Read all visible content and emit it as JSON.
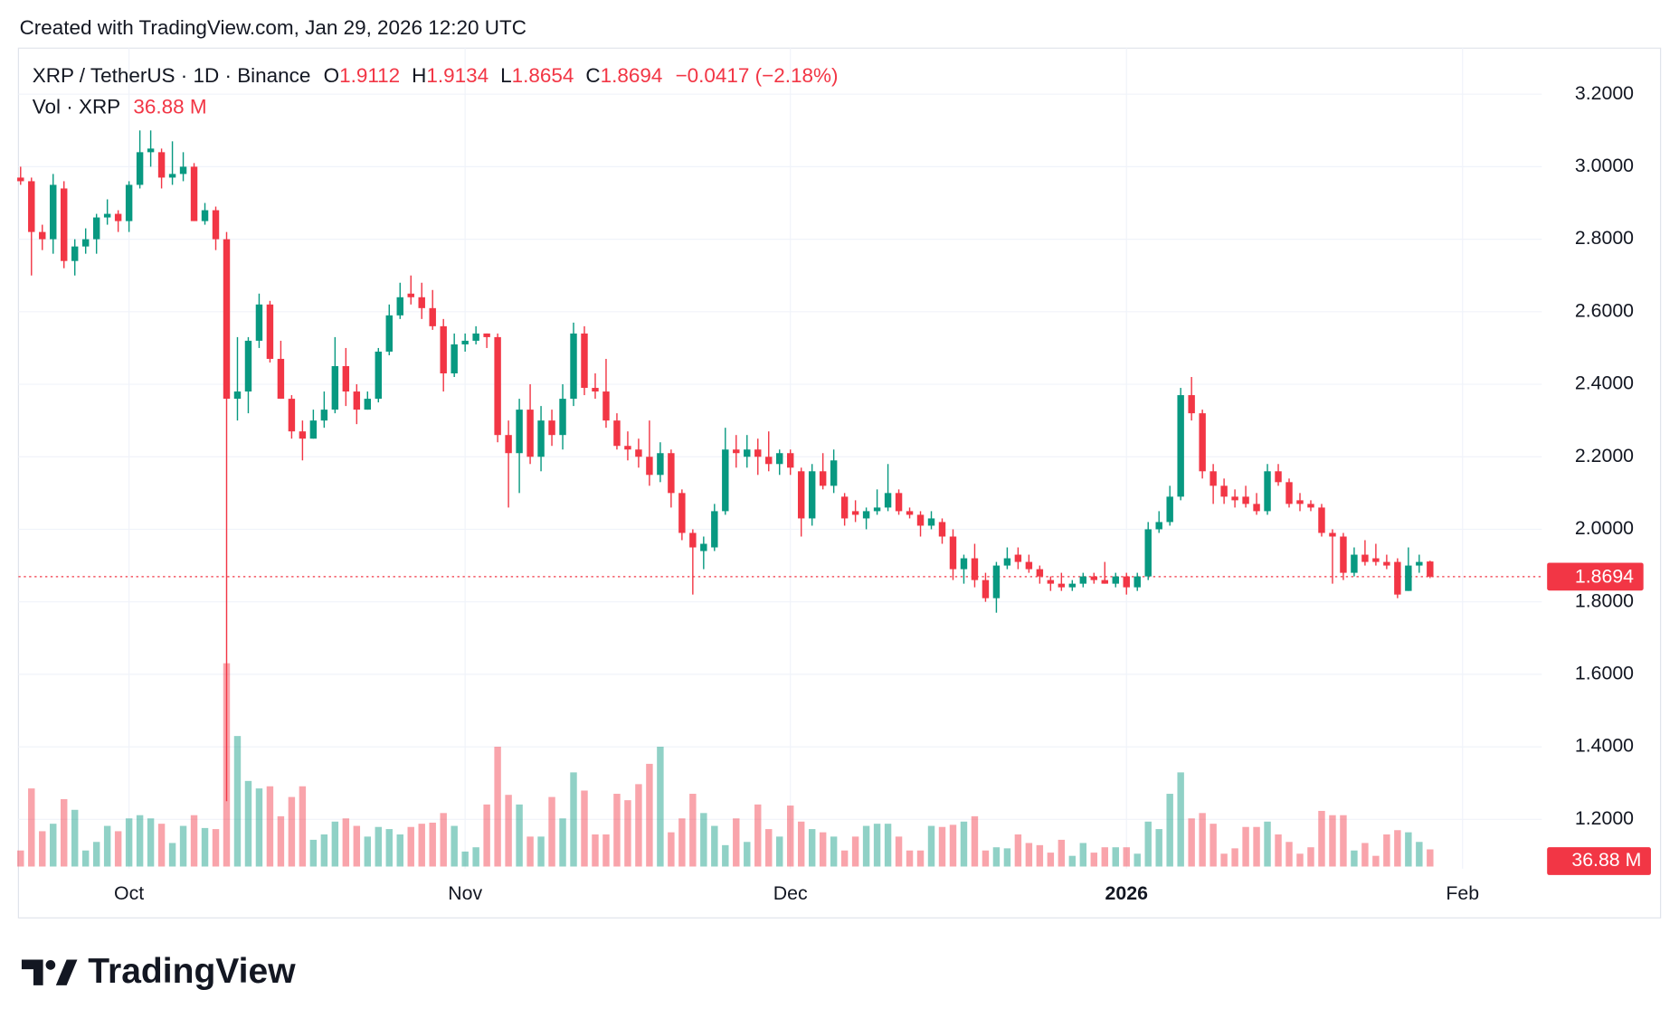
{
  "caption": "Created with TradingView.com, Jan 29, 2026 12:20 UTC",
  "watermark": "TradingView",
  "chart_data": {
    "type": "candlestick",
    "symbol_label": "XRP / TetherUS · 1D · Binance",
    "ohlc_keys": [
      "O",
      "H",
      "L",
      "C"
    ],
    "change_label": "−0.0417 (−2.18%)",
    "volume_title": "Vol · XRP",
    "last_volume_label": "36.88 M",
    "up_color": "#089981",
    "down_color": "#f23645",
    "grid": true,
    "ylim": [
      1.064,
      3.327
    ],
    "yticks": [
      {
        "value": 1.2,
        "label": "1.2000"
      },
      {
        "value": 1.4,
        "label": "1.4000"
      },
      {
        "value": 1.6,
        "label": "1.6000"
      },
      {
        "value": 1.8,
        "label": "1.8000"
      },
      {
        "value": 2.0,
        "label": "2.0000"
      },
      {
        "value": 2.2,
        "label": "2.2000"
      },
      {
        "value": 2.4,
        "label": "2.4000"
      },
      {
        "value": 2.6,
        "label": "2.6000"
      },
      {
        "value": 2.8,
        "label": "2.8000"
      },
      {
        "value": 3.0,
        "label": "3.0000"
      },
      {
        "value": 3.2,
        "label": "3.2000"
      }
    ],
    "xlim": [
      -0.2,
      140.3
    ],
    "xticks": [
      {
        "value": 10,
        "label": "Oct"
      },
      {
        "value": 41,
        "label": "Nov"
      },
      {
        "value": 71,
        "label": "Dec"
      },
      {
        "value": 102,
        "label": "2026"
      },
      {
        "value": 133,
        "label": "Feb"
      }
    ],
    "open": [
      2.97,
      2.96,
      2.82,
      2.8,
      2.94,
      2.74,
      2.78,
      2.8,
      2.86,
      2.87,
      2.85,
      2.95,
      3.04,
      3.04,
      2.97,
      2.98,
      3.0,
      2.85,
      2.88,
      2.8,
      2.36,
      2.38,
      2.52,
      2.62,
      2.47,
      2.36,
      2.27,
      2.25,
      2.3,
      2.33,
      2.45,
      2.38,
      2.33,
      2.36,
      2.49,
      2.59,
      2.65,
      2.64,
      2.61,
      2.56,
      2.43,
      2.51,
      2.52,
      2.54,
      2.53,
      2.26,
      2.21,
      2.33,
      2.2,
      2.3,
      2.26,
      2.36,
      2.54,
      2.39,
      2.38,
      2.3,
      2.23,
      2.22,
      2.2,
      2.15,
      2.21,
      2.1,
      1.99,
      1.94,
      1.95,
      2.05,
      2.22,
      2.2,
      2.22,
      2.2,
      2.18,
      2.21,
      2.16,
      2.03,
      2.16,
      2.12,
      2.09,
      2.05,
      2.03,
      2.05,
      2.06,
      2.1,
      2.05,
      2.04,
      2.01,
      2.02,
      1.98,
      1.89,
      1.92,
      1.86,
      1.81,
      1.9,
      1.93,
      1.91,
      1.89,
      1.86,
      1.85,
      1.84,
      1.85,
      1.87,
      1.86,
      1.85,
      1.87,
      1.84,
      1.87,
      2.0,
      2.02,
      2.09,
      2.37,
      2.32,
      2.16,
      2.12,
      2.09,
      2.09,
      2.07,
      2.05,
      2.16,
      2.13,
      2.08,
      2.07,
      2.06,
      1.99,
      1.98,
      1.88,
      1.93,
      1.92,
      1.91,
      1.91,
      1.83,
      1.9,
      1.9112
    ],
    "high": [
      3.0,
      2.97,
      2.84,
      2.98,
      2.96,
      2.8,
      2.83,
      2.87,
      2.91,
      2.88,
      2.96,
      3.1,
      3.1,
      3.05,
      3.07,
      3.04,
      3.01,
      2.9,
      2.89,
      2.82,
      2.53,
      2.53,
      2.65,
      2.63,
      2.52,
      2.37,
      2.3,
      2.33,
      2.38,
      2.53,
      2.5,
      2.4,
      2.38,
      2.5,
      2.62,
      2.68,
      2.7,
      2.68,
      2.66,
      2.58,
      2.54,
      2.54,
      2.56,
      2.54,
      2.54,
      2.3,
      2.36,
      2.4,
      2.34,
      2.33,
      2.4,
      2.57,
      2.56,
      2.43,
      2.47,
      2.32,
      2.27,
      2.25,
      2.3,
      2.24,
      2.22,
      2.11,
      2.0,
      1.98,
      2.07,
      2.28,
      2.26,
      2.26,
      2.25,
      2.27,
      2.22,
      2.22,
      2.17,
      2.18,
      2.21,
      2.22,
      2.1,
      2.08,
      2.06,
      2.11,
      2.18,
      2.11,
      2.06,
      2.05,
      2.05,
      2.03,
      2.0,
      1.93,
      1.96,
      1.88,
      1.91,
      1.95,
      1.95,
      1.93,
      1.9,
      1.87,
      1.88,
      1.86,
      1.88,
      1.88,
      1.91,
      1.88,
      1.88,
      1.88,
      2.02,
      2.05,
      2.12,
      2.39,
      2.42,
      2.33,
      2.18,
      2.14,
      2.11,
      2.12,
      2.1,
      2.18,
      2.18,
      2.14,
      2.1,
      2.08,
      2.07,
      2.0,
      1.99,
      1.95,
      1.97,
      1.96,
      1.93,
      1.92,
      1.95,
      1.93,
      1.9134
    ],
    "low": [
      2.95,
      2.7,
      2.77,
      2.76,
      2.72,
      2.7,
      2.76,
      2.76,
      2.84,
      2.82,
      2.82,
      2.94,
      3.0,
      2.94,
      2.95,
      2.96,
      2.85,
      2.84,
      2.77,
      1.25,
      2.3,
      2.32,
      2.5,
      2.46,
      2.36,
      2.25,
      2.19,
      2.25,
      2.28,
      2.32,
      2.34,
      2.29,
      2.33,
      2.35,
      2.48,
      2.58,
      2.62,
      2.58,
      2.55,
      2.38,
      2.42,
      2.49,
      2.51,
      2.5,
      2.24,
      2.06,
      2.1,
      2.18,
      2.16,
      2.23,
      2.22,
      2.34,
      2.37,
      2.36,
      2.28,
      2.22,
      2.19,
      2.17,
      2.12,
      2.13,
      2.06,
      1.97,
      1.82,
      1.89,
      1.94,
      2.04,
      2.17,
      2.17,
      2.15,
      2.16,
      2.15,
      2.15,
      1.98,
      2.01,
      2.11,
      2.1,
      2.01,
      2.02,
      2.0,
      2.04,
      2.05,
      2.04,
      2.03,
      1.98,
      2.0,
      1.96,
      1.86,
      1.85,
      1.84,
      1.8,
      1.77,
      1.89,
      1.89,
      1.88,
      1.85,
      1.83,
      1.83,
      1.83,
      1.84,
      1.85,
      1.85,
      1.84,
      1.82,
      1.83,
      1.86,
      1.99,
      2.01,
      2.08,
      2.3,
      2.14,
      2.07,
      2.07,
      2.06,
      2.06,
      2.04,
      2.04,
      2.12,
      2.06,
      2.05,
      2.05,
      1.98,
      1.85,
      1.86,
      1.87,
      1.9,
      1.9,
      1.89,
      1.81,
      1.83,
      1.88,
      1.8654
    ],
    "close": [
      2.96,
      2.82,
      2.8,
      2.95,
      2.74,
      2.78,
      2.8,
      2.86,
      2.87,
      2.85,
      2.95,
      3.04,
      3.05,
      2.97,
      2.98,
      3.0,
      2.85,
      2.88,
      2.8,
      2.36,
      2.38,
      2.52,
      2.62,
      2.47,
      2.36,
      2.27,
      2.25,
      2.3,
      2.33,
      2.45,
      2.38,
      2.33,
      2.36,
      2.49,
      2.59,
      2.64,
      2.64,
      2.61,
      2.56,
      2.43,
      2.51,
      2.52,
      2.54,
      2.53,
      2.26,
      2.21,
      2.33,
      2.2,
      2.3,
      2.26,
      2.36,
      2.54,
      2.39,
      2.38,
      2.3,
      2.23,
      2.22,
      2.2,
      2.15,
      2.21,
      2.1,
      1.99,
      1.95,
      1.96,
      2.05,
      2.22,
      2.21,
      2.22,
      2.2,
      2.18,
      2.21,
      2.17,
      2.03,
      2.16,
      2.12,
      2.19,
      2.03,
      2.04,
      2.05,
      2.06,
      2.1,
      2.05,
      2.04,
      2.01,
      2.03,
      1.98,
      1.89,
      1.92,
      1.86,
      1.81,
      1.9,
      1.92,
      1.91,
      1.89,
      1.87,
      1.85,
      1.84,
      1.85,
      1.87,
      1.86,
      1.85,
      1.87,
      1.84,
      1.87,
      2.0,
      2.02,
      2.09,
      2.37,
      2.32,
      2.16,
      2.12,
      2.09,
      2.08,
      2.07,
      2.05,
      2.16,
      2.13,
      2.07,
      2.07,
      2.06,
      1.99,
      1.98,
      1.88,
      1.93,
      1.91,
      1.91,
      1.9,
      1.82,
      1.9,
      1.91,
      1.8694
    ],
    "volume": [
      34.5,
      167.9,
      75.9,
      92,
      144.9,
      121.9,
      34.5,
      52.9,
      87.4,
      75.9,
      103.5,
      110.4,
      103.5,
      92,
      50.6,
      87.4,
      110.4,
      82.8,
      80.5,
      437,
      280.6,
      184,
      167.9,
      172.5,
      108.1,
      149.5,
      172.5,
      57.5,
      69,
      96.6,
      103.5,
      87.4,
      64.4,
      85.1,
      80.5,
      69,
      85.1,
      92,
      94.3,
      115,
      87.4,
      32.2,
      41.4,
      133.4,
      257.6,
      154.1,
      133.4,
      64.4,
      64.4,
      149.5,
      103.5,
      202.4,
      163.3,
      69,
      69,
      156.4,
      142.6,
      177.1,
      220.8,
      257.6,
      73.6,
      103.5,
      156.4,
      115,
      87.4,
      46,
      103.5,
      52.9,
      133.4,
      80.5,
      64.4,
      131.1,
      96.6,
      80.5,
      73.6,
      64.4,
      34.5,
      64.4,
      87.4,
      92,
      92,
      64.4,
      34.5,
      34.5,
      87.4,
      85.1,
      89.7,
      96.6,
      108.1,
      34.5,
      41.4,
      39.1,
      69,
      50.6,
      46,
      29.9,
      57.5,
      23,
      50.6,
      29.9,
      41.4,
      41.4,
      41.4,
      27.6,
      96.6,
      80.5,
      156.4,
      202.4,
      103.5,
      115,
      92,
      27.6,
      39.1,
      85.1,
      85.1,
      96.6,
      69,
      52.9,
      27.6,
      41.4,
      119.6,
      110.4,
      110.4,
      34.5,
      50.6,
      23,
      69,
      78.2,
      73.6,
      52.9,
      36.88
    ]
  }
}
